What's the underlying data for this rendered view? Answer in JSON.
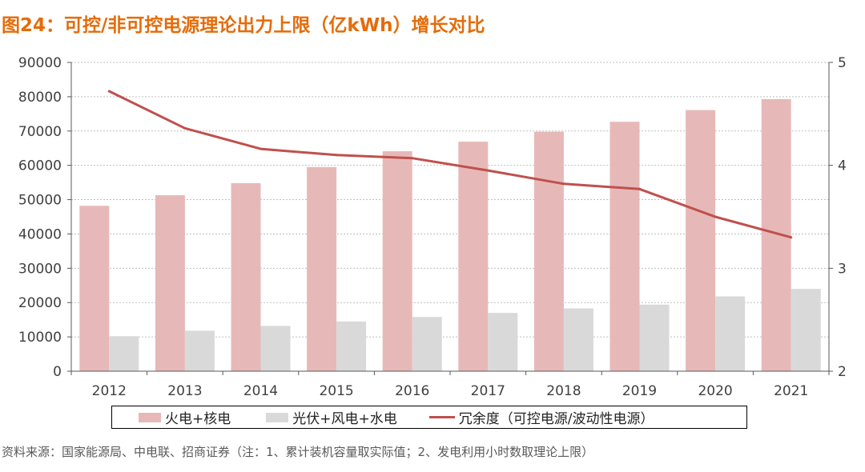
{
  "title": "图24：可控/非可控电源理论出力上限（亿kWh）增长对比",
  "source": "资料来源：国家能源局、中电联、招商证券（注：1、累计装机容量取实际值；2、发电利用小时数取理论上限）",
  "colors": {
    "title": "#E46C0A",
    "series1": "#E6B9B8",
    "series2": "#D9D9D9",
    "line": "#C0504D"
  },
  "chart_data": {
    "type": "bar",
    "categories": [
      "2012",
      "2013",
      "2014",
      "2015",
      "2016",
      "2017",
      "2018",
      "2019",
      "2020",
      "2021"
    ],
    "series": [
      {
        "name": "火电+核电",
        "type": "bar",
        "axis": "left",
        "values": [
          48200,
          51300,
          54800,
          59500,
          64100,
          66900,
          69800,
          72700,
          76100,
          79300
        ]
      },
      {
        "name": "光伏+风电+水电",
        "type": "bar",
        "axis": "left",
        "values": [
          10200,
          11800,
          13200,
          14500,
          15800,
          17000,
          18300,
          19400,
          21800,
          24000
        ]
      },
      {
        "name": "冗余度（可控电源/波动性电源）",
        "type": "line",
        "axis": "right",
        "values": [
          4.72,
          4.36,
          4.16,
          4.1,
          4.07,
          3.95,
          3.82,
          3.77,
          3.5,
          3.3
        ]
      }
    ],
    "y_left": {
      "lim": [
        0,
        90000
      ],
      "ticks": [
        "0",
        "10000",
        "20000",
        "30000",
        "40000",
        "50000",
        "60000",
        "70000",
        "80000",
        "90000"
      ]
    },
    "y_right": {
      "lim": [
        2,
        5
      ],
      "ticks": [
        "2",
        "3",
        "4",
        "5"
      ]
    },
    "grid": true,
    "legend_position": "bottom"
  }
}
